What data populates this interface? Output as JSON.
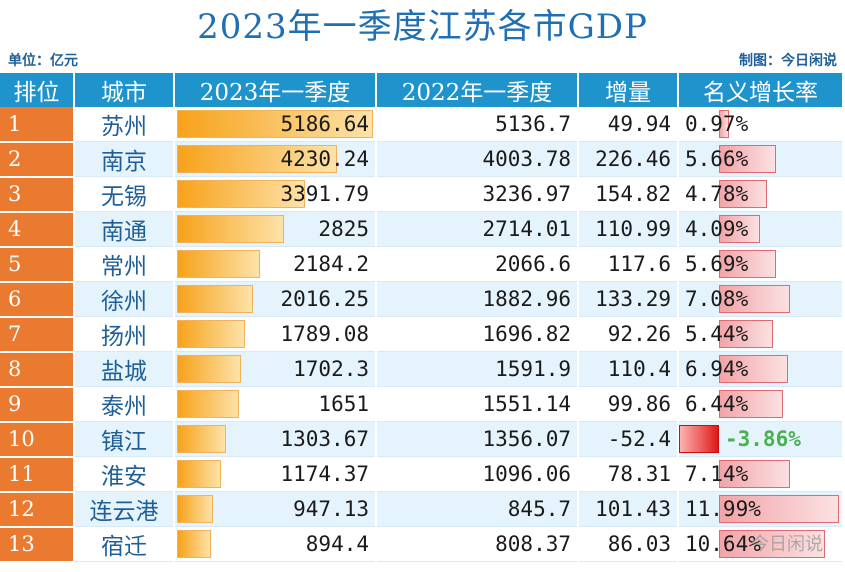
{
  "title": "2023年一季度江苏各市GDP",
  "unit_label": "单位：亿元",
  "credit": "制图：今日闲说",
  "watermark": "今日闲说",
  "colors": {
    "title": "#1f6fb2",
    "header_bg": "#1f93cc",
    "rank_bg": "#ea7a2f",
    "bar_orange": "#f7a21b",
    "rate_bar": "#e06a72",
    "negative_text": "#4caf50"
  },
  "chart_data": {
    "type": "table",
    "title": "2023年一季度江苏各市GDP",
    "columns": [
      "排位",
      "城市",
      "2023年一季度",
      "2022年一季度",
      "增量",
      "名义增长率"
    ],
    "rows": [
      {
        "rank": "1",
        "city": "苏州",
        "gdp_2023": "5186.64",
        "gdp_2022": "5136.7",
        "increase": "49.94",
        "growth": "0.97%"
      },
      {
        "rank": "2",
        "city": "南京",
        "gdp_2023": "4230.24",
        "gdp_2022": "4003.78",
        "increase": "226.46",
        "growth": "5.66%"
      },
      {
        "rank": "3",
        "city": "无锡",
        "gdp_2023": "3391.79",
        "gdp_2022": "3236.97",
        "increase": "154.82",
        "growth": "4.78%"
      },
      {
        "rank": "4",
        "city": "南通",
        "gdp_2023": "2825",
        "gdp_2022": "2714.01",
        "increase": "110.99",
        "growth": "4.09%"
      },
      {
        "rank": "5",
        "city": "常州",
        "gdp_2023": "2184.2",
        "gdp_2022": "2066.6",
        "increase": "117.6",
        "growth": "5.69%"
      },
      {
        "rank": "6",
        "city": "徐州",
        "gdp_2023": "2016.25",
        "gdp_2022": "1882.96",
        "increase": "133.29",
        "growth": "7.08%"
      },
      {
        "rank": "7",
        "city": "扬州",
        "gdp_2023": "1789.08",
        "gdp_2022": "1696.82",
        "increase": "92.26",
        "growth": "5.44%"
      },
      {
        "rank": "8",
        "city": "盐城",
        "gdp_2023": "1702.3",
        "gdp_2022": "1591.9",
        "increase": "110.4",
        "growth": "6.94%"
      },
      {
        "rank": "9",
        "city": "泰州",
        "gdp_2023": "1651",
        "gdp_2022": "1551.14",
        "increase": "99.86",
        "growth": "6.44%"
      },
      {
        "rank": "10",
        "city": "镇江",
        "gdp_2023": "1303.67",
        "gdp_2022": "1356.07",
        "increase": "-52.4",
        "growth": "-3.86%"
      },
      {
        "rank": "11",
        "city": "淮安",
        "gdp_2023": "1174.37",
        "gdp_2022": "1096.06",
        "increase": "78.31",
        "growth": "7.14%"
      },
      {
        "rank": "12",
        "city": "连云港",
        "gdp_2023": "947.13",
        "gdp_2022": "845.7",
        "increase": "101.43",
        "growth": "11.99%"
      },
      {
        "rank": "13",
        "city": "宿迁",
        "gdp_2023": "894.4",
        "gdp_2022": "808.37",
        "increase": "86.03",
        "growth": "10.64%"
      }
    ]
  }
}
